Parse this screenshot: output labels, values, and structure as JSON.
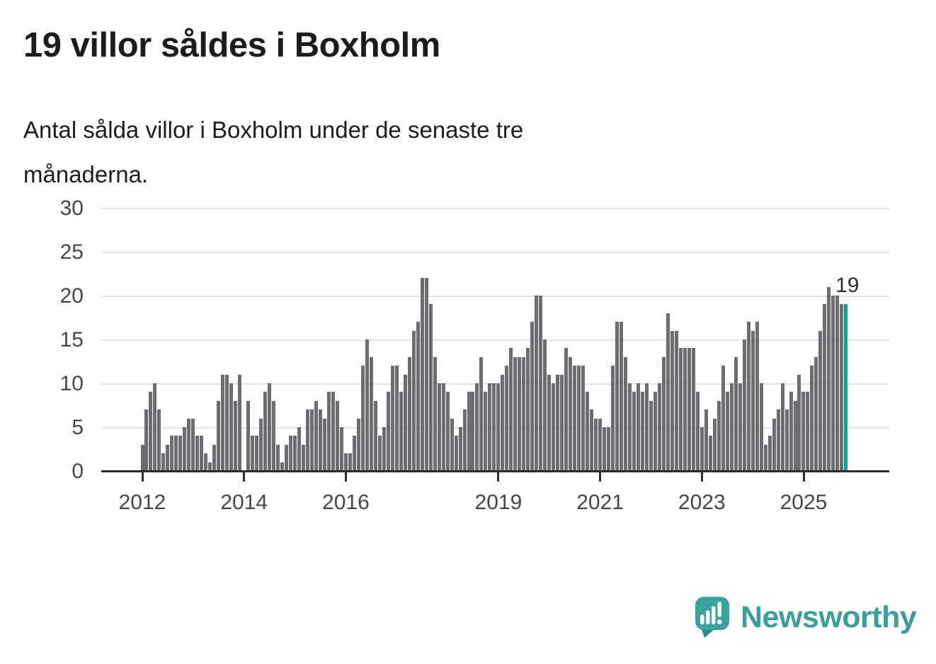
{
  "title": "19 villor såldes i Boxholm",
  "subtitle": {
    "line1": "Antal sålda villor i Boxholm under de senaste tre",
    "line2": "månaderna."
  },
  "chart_data": {
    "type": "bar",
    "title": "19 villor såldes i Boxholm",
    "xlabel": "",
    "ylabel": "",
    "ylim": [
      0,
      30
    ],
    "grid": true,
    "y_ticks": [
      0,
      5,
      10,
      15,
      20,
      25,
      30
    ],
    "y_tick_labels": [
      "0",
      "5",
      "10",
      "15",
      "20",
      "25",
      "30"
    ],
    "x_start": "2012-01",
    "x_end": "2025-11",
    "x_ticks": [
      {
        "label": "2012",
        "index": 0
      },
      {
        "label": "2014",
        "index": 24
      },
      {
        "label": "2016",
        "index": 48
      },
      {
        "label": "2019",
        "index": 84
      },
      {
        "label": "2021",
        "index": 108
      },
      {
        "label": "2023",
        "index": 132
      },
      {
        "label": "2025",
        "index": 156
      }
    ],
    "values": [
      3,
      7,
      9,
      10,
      7,
      2,
      3,
      4,
      4,
      4,
      5,
      6,
      6,
      4,
      4,
      2,
      1,
      3,
      8,
      11,
      11,
      10,
      8,
      11,
      0,
      8,
      4,
      4,
      6,
      9,
      10,
      8,
      3,
      1,
      3,
      4,
      4,
      5,
      3,
      7,
      7,
      8,
      7,
      6,
      9,
      9,
      8,
      5,
      2,
      2,
      4,
      6,
      12,
      15,
      13,
      8,
      4,
      5,
      9,
      12,
      12,
      9,
      11,
      13,
      16,
      17,
      22,
      22,
      19,
      13,
      10,
      10,
      9,
      6,
      4,
      5,
      7,
      9,
      9,
      10,
      13,
      9,
      10,
      10,
      10,
      11,
      12,
      14,
      13,
      13,
      13,
      14,
      17,
      20,
      20,
      15,
      11,
      10,
      11,
      11,
      14,
      13,
      12,
      12,
      12,
      9,
      7,
      6,
      6,
      5,
      5,
      12,
      17,
      17,
      13,
      10,
      9,
      10,
      9,
      10,
      8,
      9,
      10,
      13,
      18,
      16,
      16,
      14,
      14,
      14,
      14,
      9,
      5,
      7,
      4,
      6,
      8,
      12,
      9,
      10,
      13,
      10,
      15,
      17,
      16,
      17,
      10,
      3,
      4,
      6,
      7,
      10,
      7,
      9,
      8,
      11,
      9,
      9,
      12,
      13,
      16,
      19,
      21,
      20,
      20,
      19,
      19
    ],
    "highlight_index": 166,
    "highlight_value": 19,
    "annotation": "19",
    "bar_color": "#6c6c71",
    "highlight_color": "#00a396",
    "legend": null
  },
  "logo": {
    "text": "Newsworthy",
    "color": "#3a9e99",
    "icon": "speech-bubble-chart-icon"
  }
}
